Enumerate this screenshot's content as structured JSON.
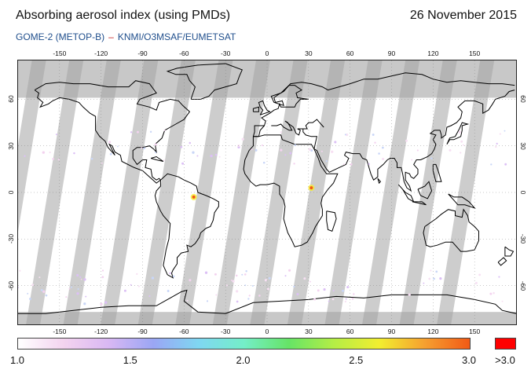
{
  "header": {
    "title": "Absorbing aerosol index (using PMDs)",
    "date": "26 November 2015",
    "instrument": "GOME-2 (METOP-B)",
    "separator": "–",
    "source": "KNMI/O3MSAF/EUMETSAT"
  },
  "map": {
    "projection": "equirectangular",
    "lon_range": [
      -180,
      180
    ],
    "lat_range": [
      -85,
      85
    ],
    "longitude_ticks": [
      "-150",
      "-120",
      "-90",
      "-60",
      "-30",
      "0",
      "30",
      "60",
      "90",
      "120",
      "150"
    ],
    "latitude_ticks": [
      "60",
      "30",
      "0",
      "-30",
      "-60"
    ],
    "no_data_color": "#c8c8c8",
    "gap_color": "#a4a4a4",
    "coastline_color": "#000000",
    "hotspots": [
      {
        "region": "central-africa",
        "lon": 32,
        "lat": 3,
        "level": "high"
      },
      {
        "region": "amazon",
        "lon": -53,
        "lat": -3,
        "level": "high"
      }
    ]
  },
  "colorbar": {
    "stops": [
      "#ffffff",
      "#f4d4ef",
      "#d9b8f3",
      "#9aa6f4",
      "#7fd7f2",
      "#74eec8",
      "#66e466",
      "#b5ee45",
      "#f2ee30",
      "#f6a030",
      "#f25a16"
    ],
    "over_color": "#ff0000",
    "labels": [
      "1.0",
      "1.5",
      "2.0",
      "2.5",
      "3.0"
    ],
    "over_label": ">3.0",
    "range": [
      1.0,
      3.0
    ]
  }
}
